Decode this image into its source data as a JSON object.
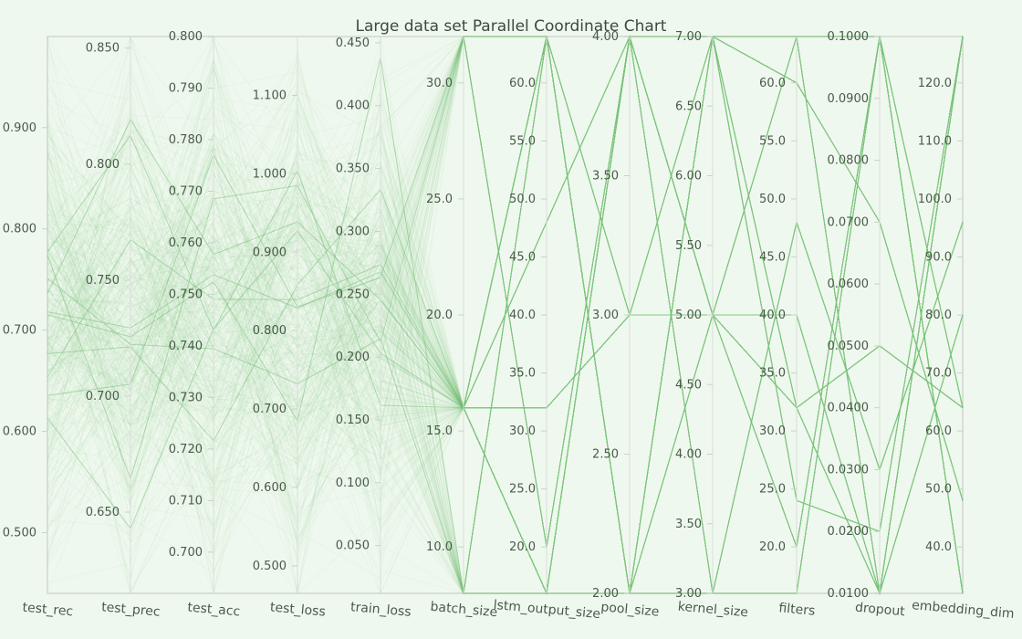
{
  "chart_data": {
    "type": "parallel-coordinates",
    "title": "Large data set Parallel Coordinate Chart",
    "colors": {
      "line": "#7cc27c",
      "background": "#eff8ee",
      "axis": "#d8ded8",
      "text": "#4a5a4a"
    },
    "axes": [
      {
        "name": "test_rec",
        "label": "test_rec",
        "range": [
          0.44,
          0.99
        ],
        "ticks": [
          "0.500",
          "0.600",
          "0.700",
          "0.800",
          "0.900"
        ],
        "tick_side": "left"
      },
      {
        "name": "test_prec",
        "label": "test_prec",
        "range": [
          0.615,
          0.855
        ],
        "ticks": [
          "0.650",
          "0.700",
          "0.750",
          "0.800",
          "0.850"
        ]
      },
      {
        "name": "test_acc",
        "label": "test_acc",
        "range": [
          0.692,
          0.8
        ],
        "ticks": [
          "0.700",
          "0.710",
          "0.720",
          "0.730",
          "0.740",
          "0.750",
          "0.760",
          "0.770",
          "0.780",
          "0.790",
          "0.800"
        ]
      },
      {
        "name": "test_loss",
        "label": "test_loss",
        "range": [
          0.465,
          1.175
        ],
        "ticks": [
          "0.500",
          "0.600",
          "0.700",
          "0.800",
          "0.900",
          "1.000",
          "1.100"
        ]
      },
      {
        "name": "train_loss",
        "label": "train_loss",
        "range": [
          0.012,
          0.455
        ],
        "ticks": [
          "0.050",
          "0.100",
          "0.150",
          "0.200",
          "0.250",
          "0.300",
          "0.350",
          "0.400",
          "0.450"
        ]
      },
      {
        "name": "batch_size",
        "label": "batch_size",
        "range": [
          8,
          32
        ],
        "ticks": [
          "10.0",
          "15.0",
          "20.0",
          "25.0",
          "30.0"
        ]
      },
      {
        "name": "lstm_output_size",
        "label": "lstm_output_size",
        "range": [
          16,
          64
        ],
        "ticks": [
          "20.0",
          "25.0",
          "30.0",
          "35.0",
          "40.0",
          "45.0",
          "50.0",
          "55.0",
          "60.0"
        ]
      },
      {
        "name": "pool_size",
        "label": "pool_size",
        "range": [
          2,
          4
        ],
        "ticks": [
          "2.00",
          "2.50",
          "3.00",
          "3.50",
          "4.00"
        ]
      },
      {
        "name": "kernel_size",
        "label": "kernel_size",
        "range": [
          3,
          7
        ],
        "ticks": [
          "3.00",
          "3.50",
          "4.00",
          "4.50",
          "5.00",
          "5.50",
          "6.00",
          "6.50",
          "7.00"
        ]
      },
      {
        "name": "filters",
        "label": "filters",
        "range": [
          16,
          64
        ],
        "ticks": [
          "20.0",
          "25.0",
          "30.0",
          "35.0",
          "40.0",
          "45.0",
          "50.0",
          "55.0",
          "60.0"
        ]
      },
      {
        "name": "dropout",
        "label": "dropout",
        "range": [
          0.01,
          0.1
        ],
        "ticks": [
          "0.0100",
          "0.0200",
          "0.0300",
          "0.0400",
          "0.0500",
          "0.0600",
          "0.0700",
          "0.0800",
          "0.0900",
          "0.1000"
        ]
      },
      {
        "name": "embedding_dim",
        "label": "embedding_dim",
        "range": [
          32,
          128
        ],
        "ticks": [
          "40.0",
          "50.0",
          "60.0",
          "70.0",
          "80.0",
          "90.0",
          "100.0",
          "110.0",
          "120.0"
        ]
      }
    ],
    "hyperparameter_configs": [
      {
        "batch_size": 16,
        "lstm_output_size": 64,
        "pool_size": 2,
        "kernel_size": 7,
        "filters": 64,
        "dropout": 0.01,
        "embedding_dim": 128
      },
      {
        "batch_size": 16,
        "lstm_output_size": 16,
        "pool_size": 4,
        "kernel_size": 3,
        "filters": 16,
        "dropout": 0.1,
        "embedding_dim": 32
      },
      {
        "batch_size": 32,
        "lstm_output_size": 64,
        "pool_size": 2,
        "kernel_size": 5,
        "filters": 32,
        "dropout": 0.05,
        "embedding_dim": 64
      },
      {
        "batch_size": 8,
        "lstm_output_size": 16,
        "pool_size": 4,
        "kernel_size": 7,
        "filters": 32,
        "dropout": 0.01,
        "embedding_dim": 128
      },
      {
        "batch_size": 16,
        "lstm_output_size": 32,
        "pool_size": 3,
        "kernel_size": 5,
        "filters": 64,
        "dropout": 0.1,
        "embedding_dim": 64
      },
      {
        "batch_size": 16,
        "lstm_output_size": 64,
        "pool_size": 2,
        "kernel_size": 3,
        "filters": 48,
        "dropout": 0.03,
        "embedding_dim": 96
      },
      {
        "batch_size": 16,
        "lstm_output_size": 48,
        "pool_size": 4,
        "kernel_size": 5,
        "filters": 20,
        "dropout": 0.1,
        "embedding_dim": 32
      },
      {
        "batch_size": 8,
        "lstm_output_size": 64,
        "pool_size": 3,
        "kernel_size": 7,
        "filters": 24,
        "dropout": 0.02,
        "embedding_dim": 128
      },
      {
        "batch_size": 32,
        "lstm_output_size": 20,
        "pool_size": 4,
        "kernel_size": 5,
        "filters": 40,
        "dropout": 0.01,
        "embedding_dim": 80
      },
      {
        "batch_size": 16,
        "lstm_output_size": 16,
        "pool_size": 2,
        "kernel_size": 7,
        "filters": 60,
        "dropout": 0.07,
        "embedding_dim": 48
      }
    ]
  }
}
